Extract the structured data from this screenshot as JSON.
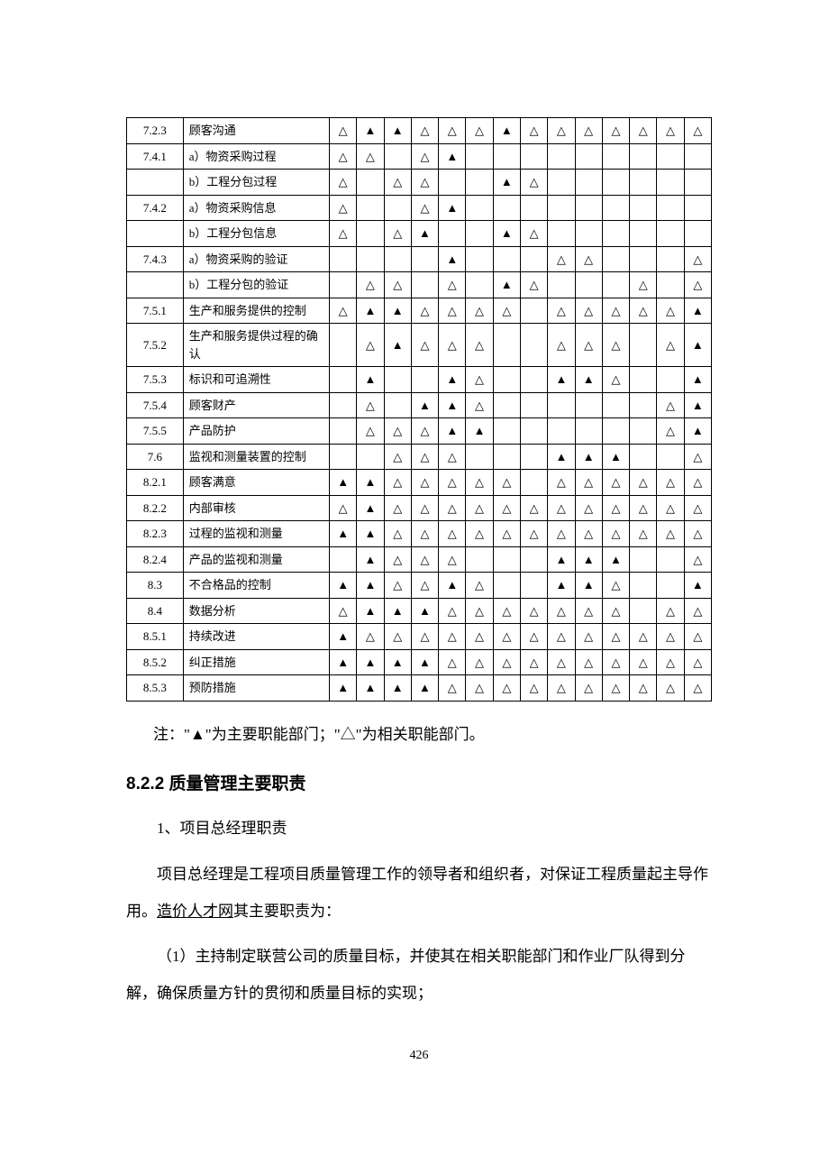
{
  "symbols": {
    "main": "▲",
    "related": "△"
  },
  "table": {
    "rows": [
      {
        "id": "7.2.3",
        "desc": "顾客沟通",
        "cells": [
          "△",
          "▲",
          "▲",
          "△",
          "△",
          "△",
          "▲",
          "△",
          "△",
          "△",
          "△",
          "△",
          "△",
          "△"
        ]
      },
      {
        "id": "7.4.1",
        "desc": "a）物资采购过程",
        "cells": [
          "△",
          "△",
          "",
          "△",
          "▲",
          "",
          "",
          "",
          "",
          "",
          "",
          "",
          "",
          ""
        ]
      },
      {
        "id": "",
        "desc": "b）工程分包过程",
        "cells": [
          "△",
          "",
          "△",
          "△",
          "",
          "",
          "▲",
          "△",
          "",
          "",
          "",
          "",
          "",
          ""
        ]
      },
      {
        "id": "7.4.2",
        "desc": "a）物资采购信息",
        "cells": [
          "△",
          "",
          "",
          "△",
          "▲",
          "",
          "",
          "",
          "",
          "",
          "",
          "",
          "",
          ""
        ]
      },
      {
        "id": "",
        "desc": "b）工程分包信息",
        "cells": [
          "△",
          "",
          "△",
          "▲",
          "",
          "",
          "▲",
          "△",
          "",
          "",
          "",
          "",
          "",
          ""
        ]
      },
      {
        "id": "7.4.3",
        "desc": "a）物资采购的验证",
        "cells": [
          "",
          "",
          "",
          "",
          "▲",
          "",
          "",
          "",
          "△",
          "△",
          "",
          "",
          "",
          "△"
        ]
      },
      {
        "id": "",
        "desc": "b）工程分包的验证",
        "cells": [
          "",
          "△",
          "△",
          "",
          "△",
          "",
          "▲",
          "△",
          "",
          "",
          "",
          "△",
          "",
          "△"
        ]
      },
      {
        "id": "7.5.1",
        "desc": "生产和服务提供的控制",
        "cells": [
          "△",
          "▲",
          "▲",
          "△",
          "△",
          "△",
          "△",
          "",
          "△",
          "△",
          "△",
          "△",
          "△",
          "▲"
        ]
      },
      {
        "id": "7.5.2",
        "desc": "生产和服务提供过程的确认",
        "cells": [
          "",
          "△",
          "▲",
          "△",
          "△",
          "△",
          "",
          "",
          "△",
          "△",
          "△",
          "",
          "△",
          "▲"
        ]
      },
      {
        "id": "7.5.3",
        "desc": "标识和可追溯性",
        "cells": [
          "",
          "▲",
          "",
          "",
          "▲",
          "△",
          "",
          "",
          "▲",
          "▲",
          "△",
          "",
          "",
          "▲"
        ]
      },
      {
        "id": "7.5.4",
        "desc": "顾客财产",
        "cells": [
          "",
          "△",
          "",
          "▲",
          "▲",
          "△",
          "",
          "",
          "",
          "",
          "",
          "",
          "△",
          "▲"
        ]
      },
      {
        "id": "7.5.5",
        "desc": "产品防护",
        "cells": [
          "",
          "△",
          "△",
          "△",
          "▲",
          "▲",
          "",
          "",
          "",
          "",
          "",
          "",
          "△",
          "▲"
        ]
      },
      {
        "id": "7.6",
        "desc": "监视和测量装置的控制",
        "cells": [
          "",
          "",
          "△",
          "△",
          "△",
          "",
          "",
          "",
          "▲",
          "▲",
          "▲",
          "",
          "",
          "△"
        ]
      },
      {
        "id": "8.2.1",
        "desc": "顾客满意",
        "cells": [
          "▲",
          "▲",
          "△",
          "△",
          "△",
          "△",
          "△",
          "",
          "△",
          "△",
          "△",
          "△",
          "△",
          "△"
        ]
      },
      {
        "id": "8.2.2",
        "desc": "内部审核",
        "cells": [
          "△",
          "▲",
          "△",
          "△",
          "△",
          "△",
          "△",
          "△",
          "△",
          "△",
          "△",
          "△",
          "△",
          "△"
        ]
      },
      {
        "id": "8.2.3",
        "desc": "过程的监视和测量",
        "cells": [
          "▲",
          "▲",
          "△",
          "△",
          "△",
          "△",
          "△",
          "△",
          "△",
          "△",
          "△",
          "△",
          "△",
          "△"
        ]
      },
      {
        "id": "8.2.4",
        "desc": "产品的监视和测量",
        "cells": [
          "",
          "▲",
          "△",
          "△",
          "△",
          "",
          "",
          "",
          "▲",
          "▲",
          "▲",
          "",
          "",
          "△"
        ]
      },
      {
        "id": "8.3",
        "desc": "不合格品的控制",
        "cells": [
          "▲",
          "▲",
          "△",
          "△",
          "▲",
          "△",
          "",
          "",
          "▲",
          "▲",
          "△",
          "",
          "",
          "▲"
        ]
      },
      {
        "id": "8.4",
        "desc": "数据分析",
        "cells": [
          "△",
          "▲",
          "▲",
          "▲",
          "△",
          "△",
          "△",
          "△",
          "△",
          "△",
          "△",
          "",
          "△",
          "△"
        ]
      },
      {
        "id": "8.5.1",
        "desc": "持续改进",
        "cells": [
          "▲",
          "△",
          "△",
          "△",
          "△",
          "△",
          "△",
          "△",
          "△",
          "△",
          "△",
          "△",
          "△",
          "△"
        ]
      },
      {
        "id": "8.5.2",
        "desc": "纠正措施",
        "cells": [
          "▲",
          "▲",
          "▲",
          "▲",
          "△",
          "△",
          "△",
          "△",
          "△",
          "△",
          "△",
          "△",
          "△",
          "△"
        ]
      },
      {
        "id": "8.5.3",
        "desc": "预防措施",
        "cells": [
          "▲",
          "▲",
          "▲",
          "▲",
          "△",
          "△",
          "△",
          "△",
          "△",
          "△",
          "△",
          "△",
          "△",
          "△"
        ]
      }
    ]
  },
  "note": "注：\"▲\"为主要职能部门；\"△\"为相关职能部门。",
  "heading": "8.2.2 质量管理主要职责",
  "para1": "1、项目总经理职责",
  "para2_a": "项目总经理是工程项目质量管理工作的领导者和组织者，对保证工程质量起主导作用。",
  "para2_link": "造价人才网",
  "para2_b": "其主要职责为：",
  "para3": "（1）主持制定联营公司的质量目标，并使其在相关职能部门和作业厂队得到分解，确保质量方针的贯彻和质量目标的实现；",
  "page_number": "426"
}
